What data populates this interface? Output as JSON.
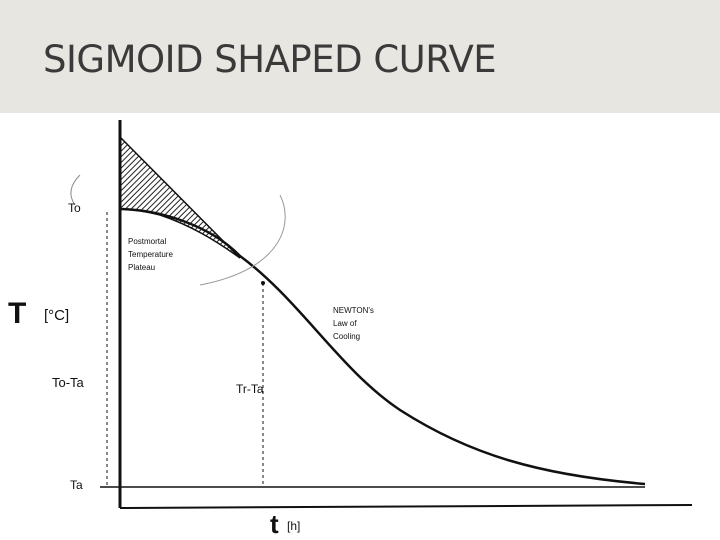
{
  "slide": {
    "title": "SIGMOID SHAPED CURVE"
  },
  "diagram": {
    "y_axis_symbol": "T",
    "y_axis_unit": "[°C]",
    "x_axis_symbol": "t",
    "x_axis_unit": "[h]",
    "level_to": "To",
    "level_to_ta": "To-Ta",
    "level_ta": "Ta",
    "marker_tr_ta": "Tr-Ta",
    "plateau_label": [
      "Postmortal",
      "Temperature",
      "Plateau"
    ],
    "newton_label": [
      "NEWTON's",
      "Law of",
      "Cooling"
    ],
    "colors": {
      "ink": "#111111",
      "hatch": "#222222",
      "title_bg": "#e8e6e1",
      "title_text": "#3a3a3a"
    }
  }
}
